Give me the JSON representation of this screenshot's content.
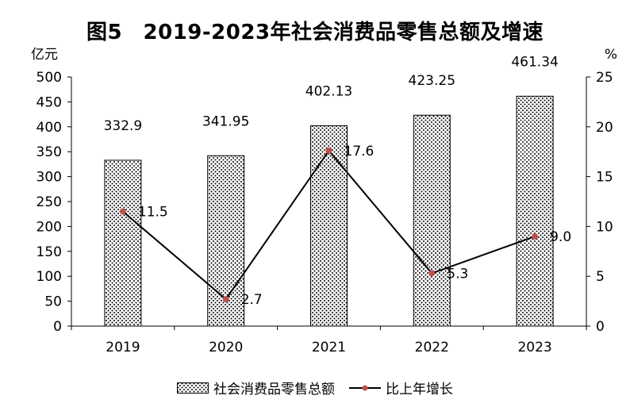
{
  "chart_data": {
    "type": "bar",
    "title": "图5　2019-2023年社会消费品零售总额及增速",
    "y_left_unit": "亿元",
    "y_right_unit": "%",
    "categories": [
      "2019",
      "2020",
      "2021",
      "2022",
      "2023"
    ],
    "y_left_ticks": [
      "0",
      "50",
      "100",
      "150",
      "200",
      "250",
      "300",
      "350",
      "400",
      "450",
      "500"
    ],
    "y_right_ticks": [
      "0",
      "5",
      "10",
      "15",
      "20",
      "25"
    ],
    "ylim_left": [
      0,
      500
    ],
    "ylim_right": [
      0,
      25
    ],
    "series": [
      {
        "name": "社会消费品零售总额",
        "type": "bar",
        "axis": "left",
        "values": [
          332.9,
          341.95,
          402.13,
          423.25,
          461.34
        ],
        "labels": [
          "332.9",
          "341.95",
          "402.13",
          "423.25",
          "461.34"
        ]
      },
      {
        "name": "比上年增长",
        "type": "line",
        "axis": "right",
        "values": [
          11.5,
          2.7,
          17.6,
          5.3,
          9.0
        ],
        "labels": [
          "11.5",
          "2.7",
          "17.6",
          "5.3",
          "9.0"
        ],
        "color": "#c0504d"
      }
    ],
    "grid": false,
    "legend_position": "bottom"
  }
}
